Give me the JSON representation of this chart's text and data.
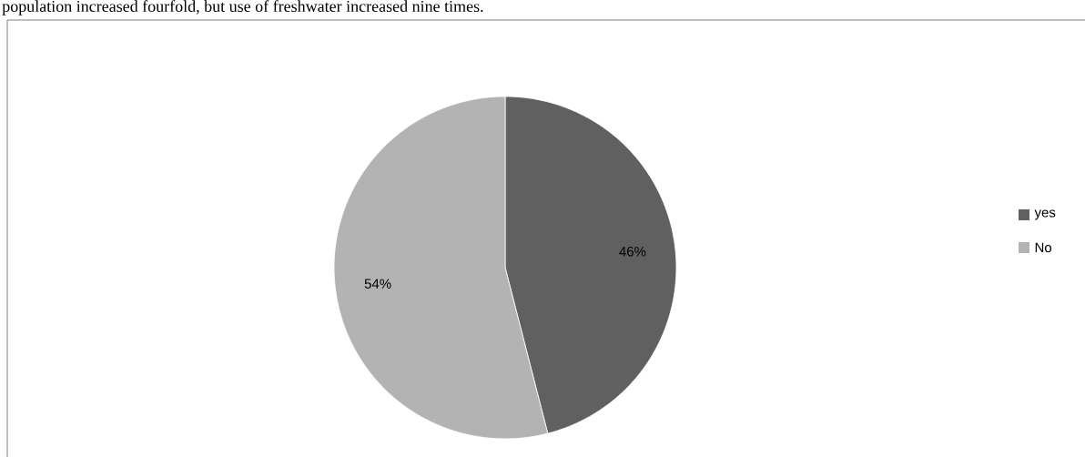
{
  "chart_data": {
    "type": "pie",
    "categories": [
      "yes",
      "No"
    ],
    "values": [
      46,
      54
    ],
    "colors": [
      "#606060",
      "#b3b3b3"
    ],
    "value_labels": [
      "46%",
      "54%"
    ],
    "legend": "right",
    "annotations": [
      "population increased fourfold, but use of freshwater increased nine times."
    ]
  }
}
